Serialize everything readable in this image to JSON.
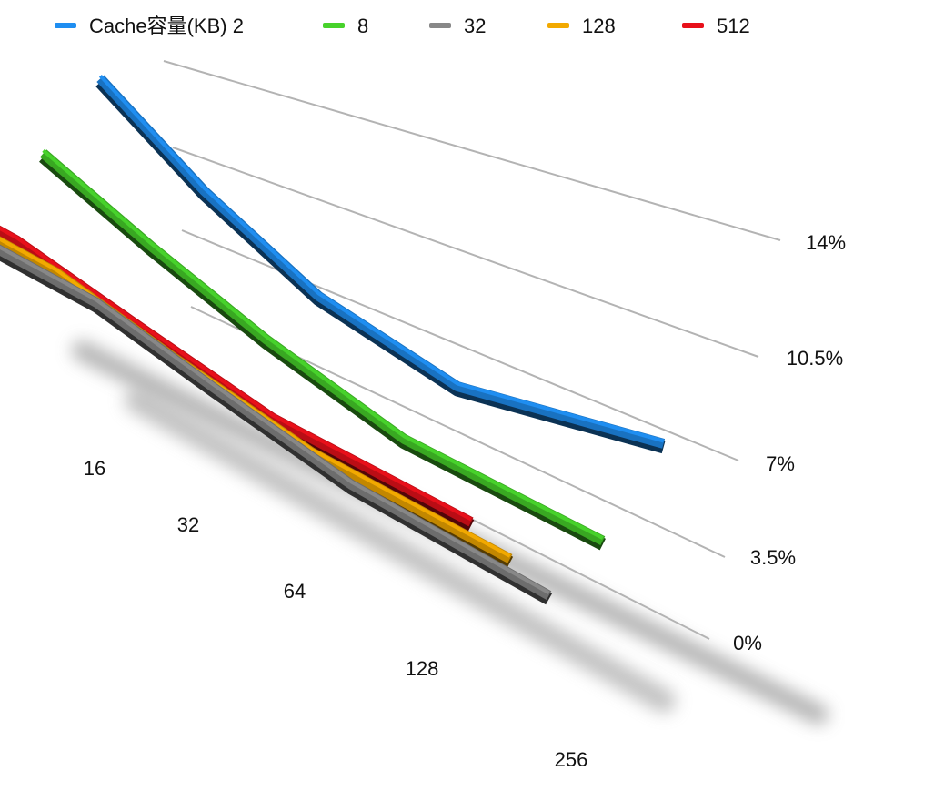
{
  "chart_data": {
    "type": "line",
    "legend_position": "top",
    "legend_title": "Cache容量(KB)",
    "categories": [
      "16",
      "32",
      "64",
      "128",
      "256"
    ],
    "ylim": [
      0,
      14
    ],
    "yticks": [
      "0%",
      "3.5%",
      "7%",
      "10.5%",
      "14%"
    ],
    "grid": true,
    "series": [
      {
        "name": "2",
        "color": "#1f8ef1",
        "values": [
          12.6,
          10.0,
          8.6,
          8.3,
          9.9
        ]
      },
      {
        "name": "8",
        "color": "#47d22b",
        "values": [
          7.9,
          6.2,
          5.3,
          4.6,
          4.2
        ]
      },
      {
        "name": "32",
        "color": "#888888",
        "values": [
          2.6,
          2.3,
          1.8,
          1.2,
          0.4
        ]
      },
      {
        "name": "128",
        "color": "#f2a900",
        "values": [
          2.6,
          2.3,
          1.8,
          1.3,
          0.7
        ]
      },
      {
        "name": "512",
        "color": "#e8101a",
        "values": [
          2.7,
          2.4,
          2.0,
          1.5,
          1.0
        ]
      }
    ]
  }
}
